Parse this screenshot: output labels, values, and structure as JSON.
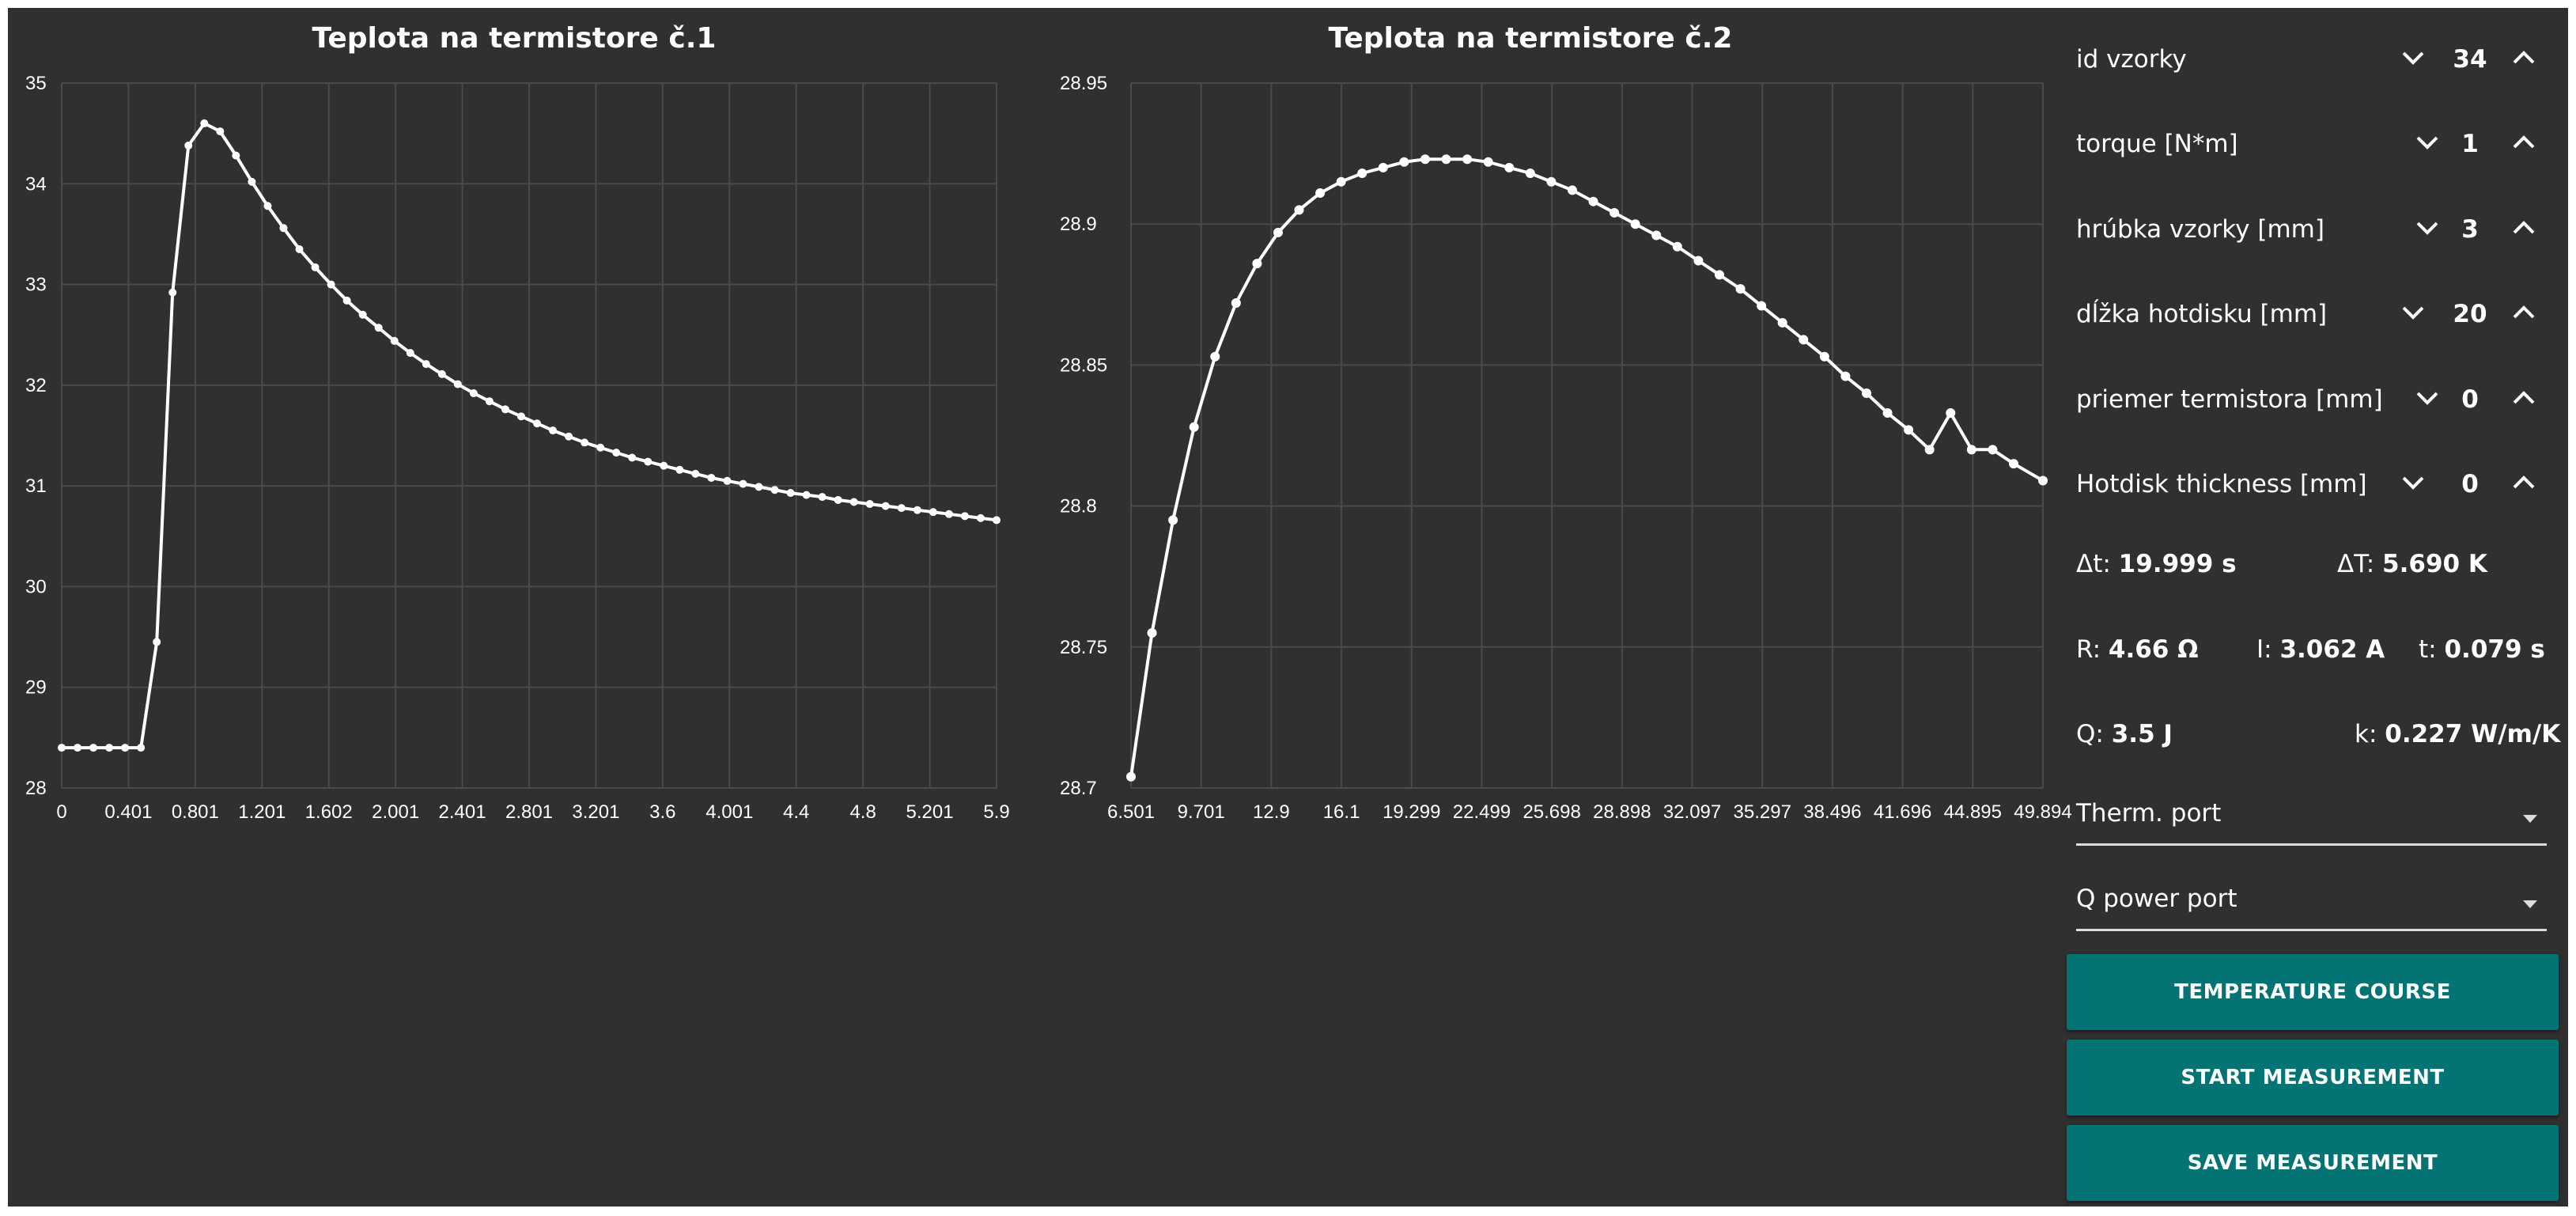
{
  "chart_data": [
    {
      "type": "line",
      "title": "Teplota na termistore č.1",
      "xlabel": "",
      "ylabel": "",
      "xlim": [
        0,
        5.9
      ],
      "ylim": [
        28,
        35
      ],
      "x_tick_labels": [
        "0",
        "0.401",
        "0.801",
        "1.201",
        "1.602",
        "2.001",
        "2.401",
        "2.801",
        "3.201",
        "3.6",
        "4.001",
        "4.4",
        "4.8",
        "5.201",
        "5.9"
      ],
      "y_ticks": [
        28,
        29,
        30,
        31,
        32,
        33,
        34,
        35
      ],
      "grid": true,
      "series": [
        {
          "x": [
            0,
            0.1,
            0.2,
            0.3,
            0.4,
            0.5,
            0.6,
            0.7,
            0.8,
            0.9,
            1.0,
            1.1,
            1.2,
            1.3,
            1.4,
            1.5,
            1.6,
            1.7,
            1.8,
            1.9,
            2.0,
            2.1,
            2.2,
            2.3,
            2.4,
            2.5,
            2.6,
            2.7,
            2.8,
            2.9,
            3.0,
            3.1,
            3.2,
            3.3,
            3.4,
            3.5,
            3.6,
            3.7,
            3.8,
            3.9,
            4.0,
            4.1,
            4.2,
            4.3,
            4.4,
            4.5,
            4.6,
            4.7,
            4.8,
            4.9,
            5.0,
            5.1,
            5.2,
            5.3,
            5.4,
            5.5,
            5.6,
            5.7,
            5.8,
            5.9
          ],
          "y": [
            28.4,
            28.4,
            28.4,
            28.4,
            28.4,
            28.4,
            29.45,
            32.92,
            34.38,
            34.6,
            34.52,
            34.28,
            34.02,
            33.78,
            33.56,
            33.35,
            33.17,
            33.0,
            32.84,
            32.7,
            32.57,
            32.44,
            32.32,
            32.21,
            32.11,
            32.01,
            31.92,
            31.84,
            31.76,
            31.69,
            31.62,
            31.55,
            31.49,
            31.43,
            31.38,
            31.33,
            31.28,
            31.24,
            31.2,
            31.16,
            31.12,
            31.08,
            31.05,
            31.02,
            30.99,
            30.96,
            30.93,
            30.91,
            30.89,
            30.86,
            30.84,
            30.82,
            30.8,
            30.78,
            30.76,
            30.74,
            30.72,
            30.7,
            30.68,
            30.66
          ]
        }
      ]
    },
    {
      "type": "line",
      "title": "Teplota na termistore č.2",
      "xlabel": "",
      "ylabel": "",
      "xlim": [
        6.501,
        49.894
      ],
      "ylim": [
        28.7,
        28.95
      ],
      "x_tick_labels": [
        "6.501",
        "9.701",
        "12.9",
        "16.1",
        "19.299",
        "22.499",
        "25.698",
        "28.898",
        "32.097",
        "35.297",
        "38.496",
        "41.696",
        "44.895",
        "49.894"
      ],
      "y_ticks": [
        28.7,
        28.75,
        28.8,
        28.85,
        28.9,
        28.95
      ],
      "grid": true,
      "series": [
        {
          "x": [
            6.501,
            7.5,
            8.5,
            9.5,
            10.5,
            11.5,
            12.5,
            13.5,
            14.5,
            15.5,
            16.5,
            17.5,
            18.5,
            19.5,
            20.5,
            21.5,
            22.5,
            23.5,
            24.5,
            25.5,
            26.5,
            27.5,
            28.5,
            29.5,
            30.5,
            31.5,
            32.5,
            33.5,
            34.5,
            35.5,
            36.5,
            37.5,
            38.5,
            39.5,
            40.5,
            41.5,
            42.5,
            43.5,
            44.5,
            45.5,
            46.5,
            47.5,
            48.5,
            49.894
          ],
          "y": [
            28.704,
            28.755,
            28.795,
            28.828,
            28.853,
            28.872,
            28.886,
            28.897,
            28.905,
            28.911,
            28.915,
            28.918,
            28.92,
            28.922,
            28.923,
            28.923,
            28.923,
            28.922,
            28.92,
            28.918,
            28.915,
            28.912,
            28.908,
            28.904,
            28.9,
            28.896,
            28.892,
            28.887,
            28.882,
            28.877,
            28.871,
            28.865,
            28.859,
            28.853,
            28.846,
            28.84,
            28.833,
            28.827,
            28.82,
            28.833,
            28.82,
            28.82,
            28.815,
            28.809
          ]
        }
      ]
    }
  ],
  "panel": {
    "steppers": [
      {
        "label": "id vzorky",
        "value": "34"
      },
      {
        "label": "torque [N*m]",
        "value": "1"
      },
      {
        "label": "hrúbka vzorky [mm]",
        "value": "3"
      },
      {
        "label": "dĺžka hotdisku [mm]",
        "value": "20"
      },
      {
        "label": "priemer termistora [mm]",
        "value": "0"
      },
      {
        "label": "Hotdisk thickness [mm]",
        "value": "0"
      }
    ],
    "readouts": {
      "dt_label": "Δt:",
      "dt_value": "19.999 s",
      "dT_label": "ΔT:",
      "dT_value": "5.690 K",
      "r_label": "R:",
      "r_value": "4.66 Ω",
      "i_label": "I:",
      "i_value": "3.062 A",
      "t_label": "t:",
      "t_value": "0.079 s",
      "q_label": "Q:",
      "q_value": "3.5 J",
      "k_label": "k:",
      "k_value": "0.227 W/m/K"
    },
    "selects": {
      "therm_port": "Therm. port",
      "q_power_port": "Q power port"
    },
    "buttons": {
      "temperature_course": "TEMPERATURE COURSE",
      "start_measurement": "START MEASUREMENT",
      "save_measurement": "SAVE MEASUREMENT"
    },
    "icons": {
      "decrement": "chevron-down-icon",
      "increment": "chevron-up-icon"
    }
  }
}
